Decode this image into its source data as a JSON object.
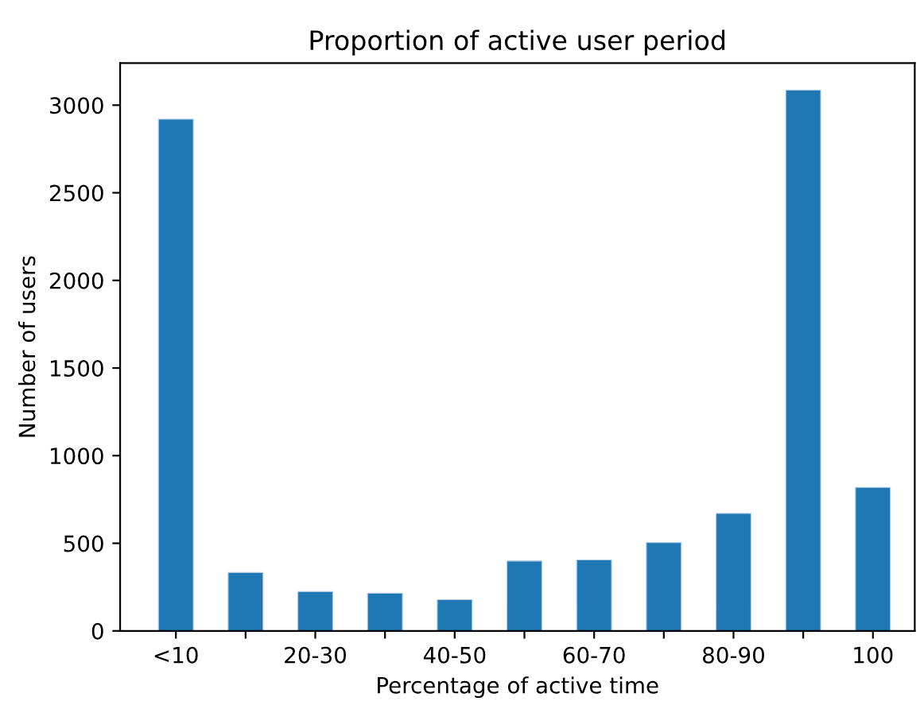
{
  "chart_data": {
    "type": "bar",
    "title": "Proportion of active user period",
    "xlabel": "Percentage of active time",
    "ylabel": "Number of users",
    "categories": [
      "<10",
      null,
      "20-30",
      null,
      "40-50",
      null,
      "60-70",
      null,
      "80-90",
      null,
      "100"
    ],
    "values": [
      2920,
      333,
      224,
      215,
      178,
      399,
      405,
      504,
      670,
      3086,
      819
    ],
    "color": "#1f77b4",
    "ylim": [
      0,
      3240
    ],
    "yticks": [
      0,
      500,
      1000,
      1500,
      2000,
      2500,
      3000
    ],
    "grid": false
  }
}
